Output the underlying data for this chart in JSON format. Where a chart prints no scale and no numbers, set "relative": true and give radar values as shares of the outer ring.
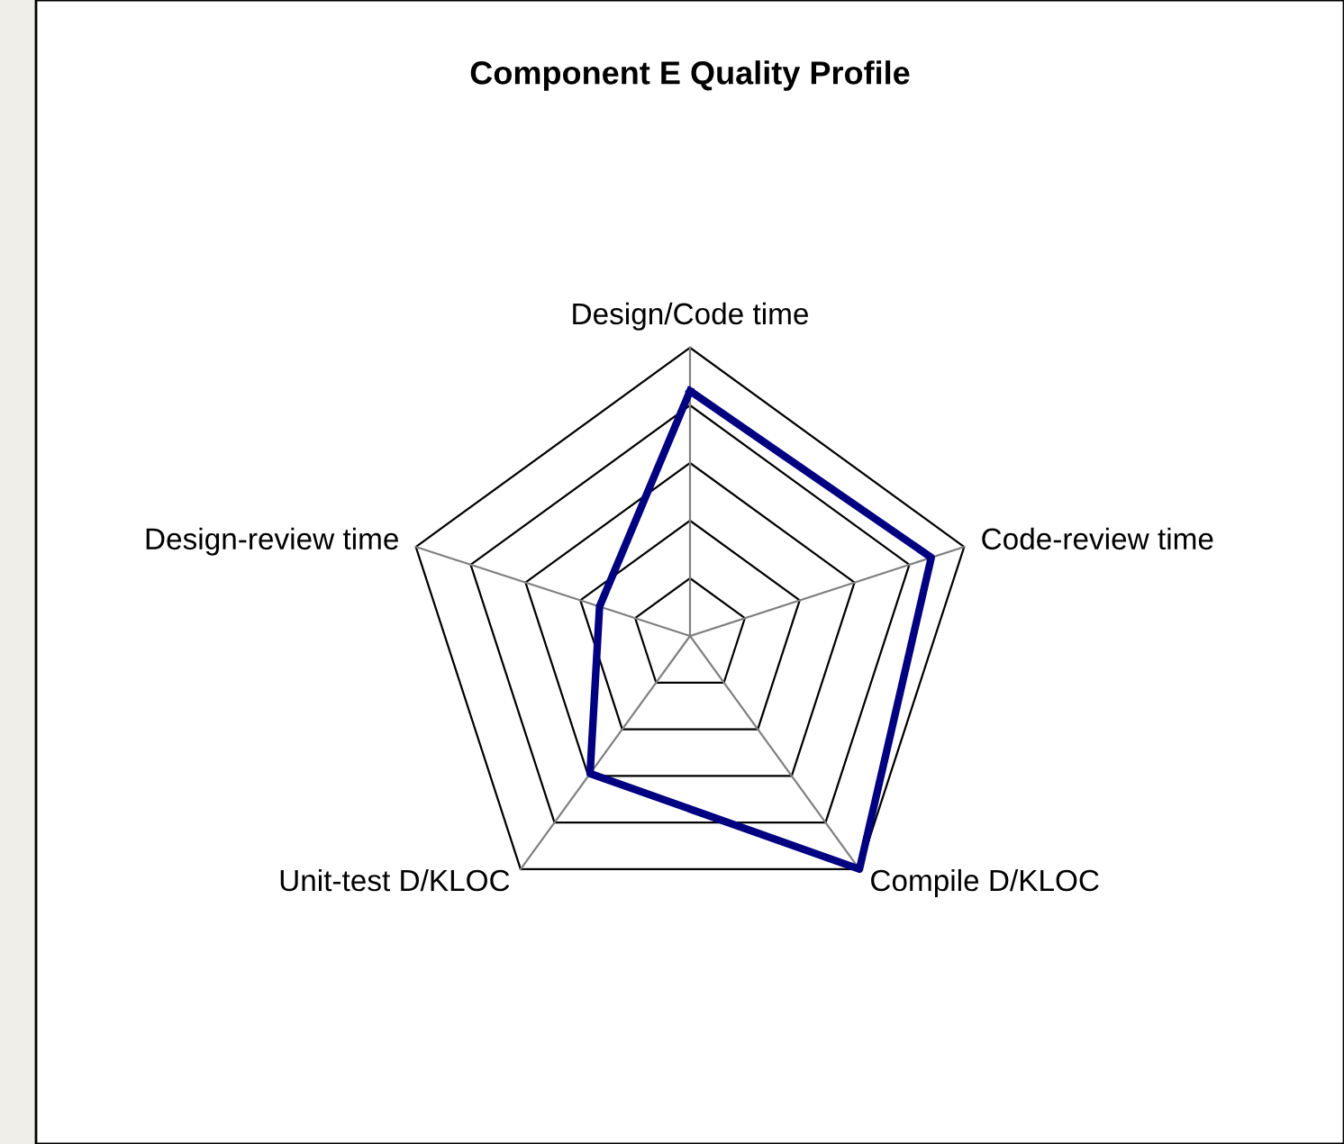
{
  "chart_data": {
    "type": "radar",
    "title": "Component E Quality Profile",
    "relative": true,
    "categories": [
      "Design/Code time",
      "Code-review time",
      "Compile D/KLOC",
      "Unit-test D/KLOC",
      "Design-review time"
    ],
    "series": [
      {
        "color": "#000080",
        "values": [
          0.85,
          0.88,
          1.0,
          0.59,
          0.33
        ]
      }
    ],
    "grid": true
  }
}
